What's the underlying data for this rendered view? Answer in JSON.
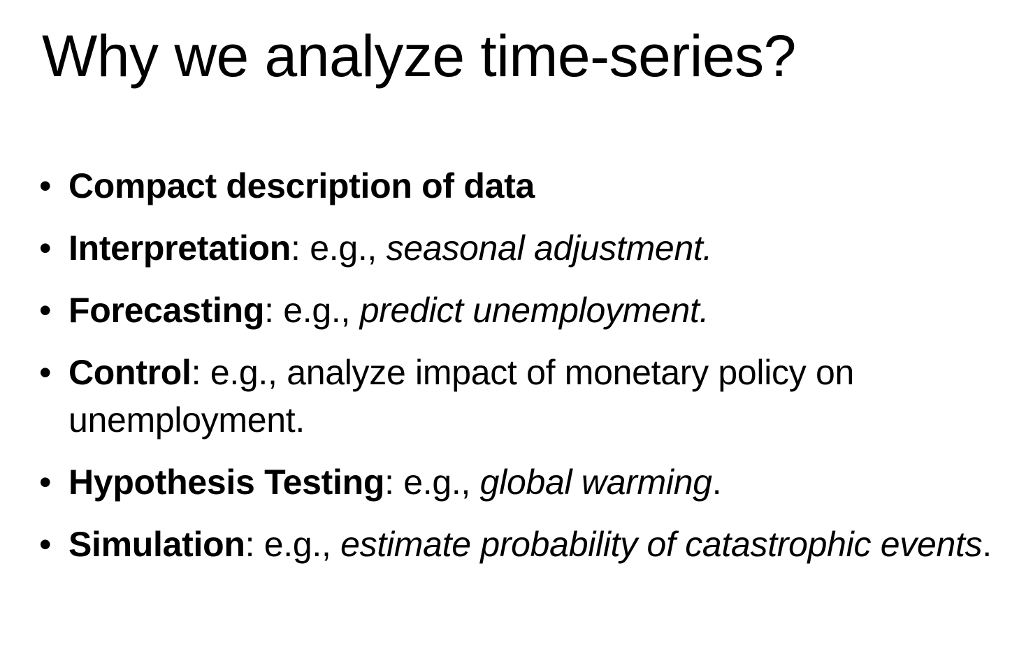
{
  "slide": {
    "title": "Why we analyze time-series?",
    "bullet_symbol": "•",
    "bullets": [
      {
        "term": "Compact description of data",
        "sep": "",
        "eg": "",
        "example": "",
        "end": ""
      },
      {
        "term": "Interpretation",
        "sep": ": ",
        "eg": "e.g., ",
        "example": "seasonal adjustment.",
        "end": ""
      },
      {
        "term": "Forecasting",
        "sep": ": ",
        "eg": "e.g., ",
        "example": "predict unemployment.",
        "end": ""
      },
      {
        "term": "Control",
        "sep": ": ",
        "eg": "e.g., analyze impact of monetary policy on unemployment.",
        "example": "",
        "end": ""
      },
      {
        "term": "Hypothesis Testing",
        "sep": ": ",
        "eg": "e.g., ",
        "example": "global warming",
        "end": "."
      },
      {
        "term": "Simulation",
        "sep": ": ",
        "eg": "e.g., ",
        "example": "estimate probability of catastrophic events",
        "end": "."
      }
    ]
  }
}
